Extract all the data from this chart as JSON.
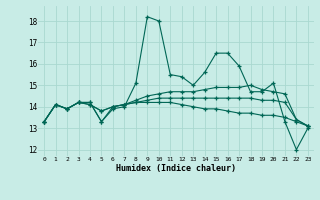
{
  "xlabel": "Humidex (Indice chaleur)",
  "bg_color": "#c8ece6",
  "grid_color": "#aad8d0",
  "line_color": "#006655",
  "ylim": [
    11.7,
    18.7
  ],
  "xlim": [
    -0.5,
    23.5
  ],
  "yticks": [
    12,
    13,
    14,
    15,
    16,
    17,
    18
  ],
  "xticks": [
    0,
    1,
    2,
    3,
    4,
    5,
    6,
    7,
    8,
    9,
    10,
    11,
    12,
    13,
    14,
    15,
    16,
    17,
    18,
    19,
    20,
    21,
    22,
    23
  ],
  "series": [
    [
      13.3,
      14.1,
      13.9,
      14.2,
      14.2,
      13.3,
      13.9,
      14.0,
      15.1,
      18.2,
      18.0,
      15.5,
      15.4,
      15.0,
      15.6,
      16.5,
      16.5,
      15.9,
      14.7,
      14.7,
      15.1,
      13.3,
      12.0,
      13.0
    ],
    [
      13.3,
      14.1,
      13.9,
      14.2,
      14.2,
      13.3,
      14.0,
      14.1,
      14.3,
      14.5,
      14.6,
      14.7,
      14.7,
      14.7,
      14.8,
      14.9,
      14.9,
      14.9,
      15.0,
      14.8,
      14.7,
      14.6,
      13.4,
      13.1
    ],
    [
      13.3,
      14.1,
      13.9,
      14.2,
      14.1,
      13.8,
      14.0,
      14.1,
      14.2,
      14.3,
      14.4,
      14.4,
      14.4,
      14.4,
      14.4,
      14.4,
      14.4,
      14.4,
      14.4,
      14.3,
      14.3,
      14.2,
      13.4,
      13.1
    ],
    [
      13.3,
      14.1,
      13.9,
      14.2,
      14.1,
      13.8,
      14.0,
      14.1,
      14.2,
      14.2,
      14.2,
      14.2,
      14.1,
      14.0,
      13.9,
      13.9,
      13.8,
      13.7,
      13.7,
      13.6,
      13.6,
      13.5,
      13.3,
      13.1
    ]
  ]
}
